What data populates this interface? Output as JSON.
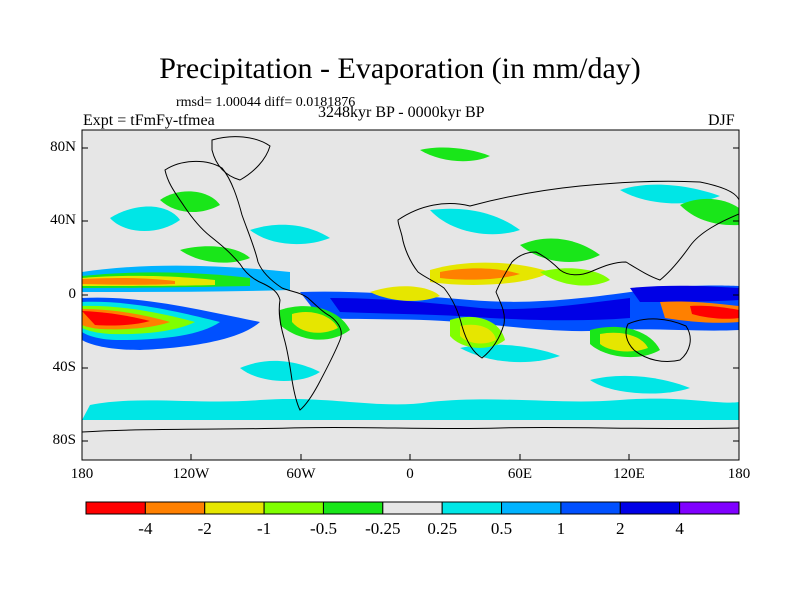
{
  "title": "Precipitation - Evaporation (in mm/day)",
  "stats": "rmsd= 1.00044 diff= 0.0181876",
  "experiment": "Expt = tFmFy-tfmea",
  "period": "3248kyr BP - 0000kyr BP",
  "season": "DJF",
  "y_ticks": [
    "80N",
    "40N",
    "0",
    "40S",
    "80S"
  ],
  "x_ticks": [
    "180",
    "120W",
    "60W",
    "0",
    "60E",
    "120E",
    "180"
  ],
  "colorbar": {
    "colors": [
      "#ff0000",
      "#ff8000",
      "#e6e600",
      "#80ff00",
      "#19e619",
      "#e6e6e6",
      "#00e6e6",
      "#00b3ff",
      "#0050ff",
      "#0000e6",
      "#8000ff"
    ],
    "labels": [
      "-4",
      "-2",
      "-1",
      "-0.5",
      "-0.25",
      "0.25",
      "0.5",
      "1",
      "2",
      "4"
    ]
  },
  "colors": {
    "ocean": "#e6e6e6",
    "coast": "#000000"
  }
}
